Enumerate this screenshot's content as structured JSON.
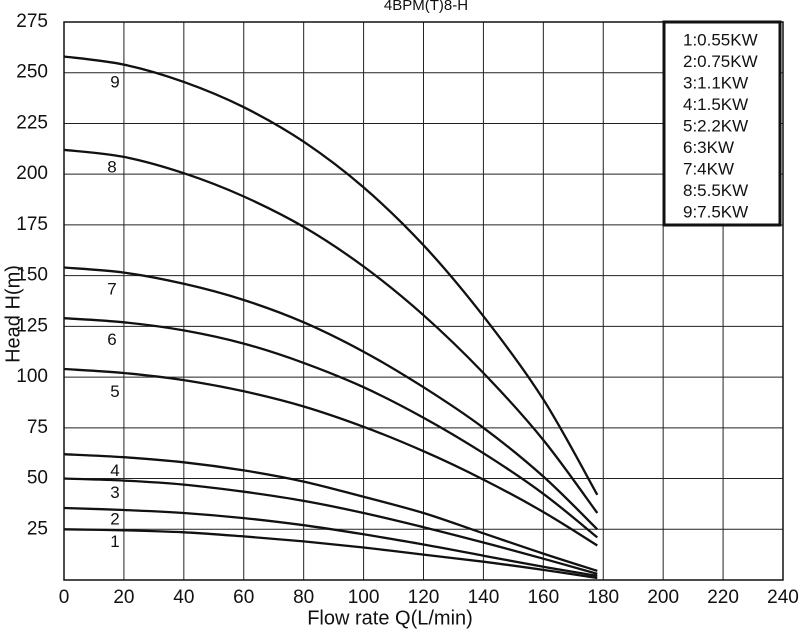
{
  "chart_data": {
    "type": "line",
    "title": "4BPM(T)8-H",
    "xlabel": "Flow rate Q(L/min)",
    "ylabel": "Head H(m)",
    "xlim": [
      0,
      240
    ],
    "ylim": [
      0,
      275
    ],
    "xticks": [
      0,
      20,
      40,
      60,
      80,
      100,
      120,
      140,
      160,
      180,
      200,
      220,
      240
    ],
    "yticks": [
      25,
      50,
      75,
      100,
      125,
      150,
      175,
      200,
      225,
      250,
      275
    ],
    "grid": true,
    "legend_position": "top-right",
    "legend": [
      "1:0.55KW",
      "2:0.75KW",
      "3:1.1KW",
      "4:1.5KW",
      "5:2.2KW",
      "6:3KW",
      "7:4KW",
      "8:5.5KW",
      "9:7.5KW"
    ],
    "series": [
      {
        "name": "1",
        "x": [
          0,
          20,
          40,
          60,
          80,
          100,
          120,
          140,
          160,
          178
        ],
        "y": [
          25,
          24.5,
          23.5,
          21.5,
          19,
          16,
          12.5,
          9,
          5,
          1
        ]
      },
      {
        "name": "2",
        "x": [
          0,
          20,
          40,
          60,
          80,
          100,
          120,
          140,
          160,
          178
        ],
        "y": [
          35.5,
          34.5,
          33,
          30.5,
          27,
          22.5,
          17.5,
          12,
          6.5,
          2
        ]
      },
      {
        "name": "3",
        "x": [
          0,
          20,
          40,
          60,
          80,
          100,
          120,
          140,
          160,
          178
        ],
        "y": [
          50,
          49,
          47,
          43.5,
          39,
          33,
          26,
          18.5,
          10.5,
          3
        ]
      },
      {
        "name": "4",
        "x": [
          0,
          20,
          40,
          60,
          80,
          100,
          120,
          140,
          160,
          178
        ],
        "y": [
          62,
          60.5,
          58,
          54,
          48.5,
          41,
          33,
          23,
          13,
          4.5
        ]
      },
      {
        "name": "5",
        "x": [
          0,
          20,
          40,
          60,
          80,
          100,
          120,
          140,
          160,
          178
        ],
        "y": [
          104,
          102,
          98.5,
          93,
          85.5,
          75.5,
          63.5,
          49.5,
          33.5,
          17
        ]
      },
      {
        "name": "6",
        "x": [
          0,
          20,
          40,
          60,
          80,
          100,
          120,
          140,
          160,
          178
        ],
        "y": [
          129,
          127,
          123,
          116.5,
          107,
          95,
          80,
          62.5,
          42.5,
          21
        ]
      },
      {
        "name": "7",
        "x": [
          0,
          20,
          40,
          60,
          80,
          100,
          120,
          140,
          160,
          178
        ],
        "y": [
          154,
          151.5,
          146,
          138,
          127,
          112.5,
          95,
          75,
          51,
          25
        ]
      },
      {
        "name": "8",
        "x": [
          0,
          20,
          40,
          60,
          80,
          100,
          120,
          140,
          160,
          178
        ],
        "y": [
          212,
          208.5,
          200.5,
          189,
          174,
          154.5,
          130.5,
          102,
          69,
          33
        ]
      },
      {
        "name": "9",
        "x": [
          0,
          20,
          40,
          60,
          80,
          100,
          120,
          140,
          160,
          178
        ],
        "y": [
          258,
          254,
          245.5,
          233,
          216,
          193.5,
          165,
          130,
          89,
          42
        ]
      }
    ],
    "curve_labels": [
      {
        "text": "1",
        "x": 17,
        "y": 18.5
      },
      {
        "text": "2",
        "x": 17,
        "y": 29.5
      },
      {
        "text": "3",
        "x": 17,
        "y": 42.5
      },
      {
        "text": "4",
        "x": 17,
        "y": 53.5
      },
      {
        "text": "5",
        "x": 17,
        "y": 92.5
      },
      {
        "text": "6",
        "x": 16,
        "y": 118
      },
      {
        "text": "7",
        "x": 16,
        "y": 143
      },
      {
        "text": "8",
        "x": 16,
        "y": 203
      },
      {
        "text": "9",
        "x": 17,
        "y": 245
      }
    ]
  }
}
